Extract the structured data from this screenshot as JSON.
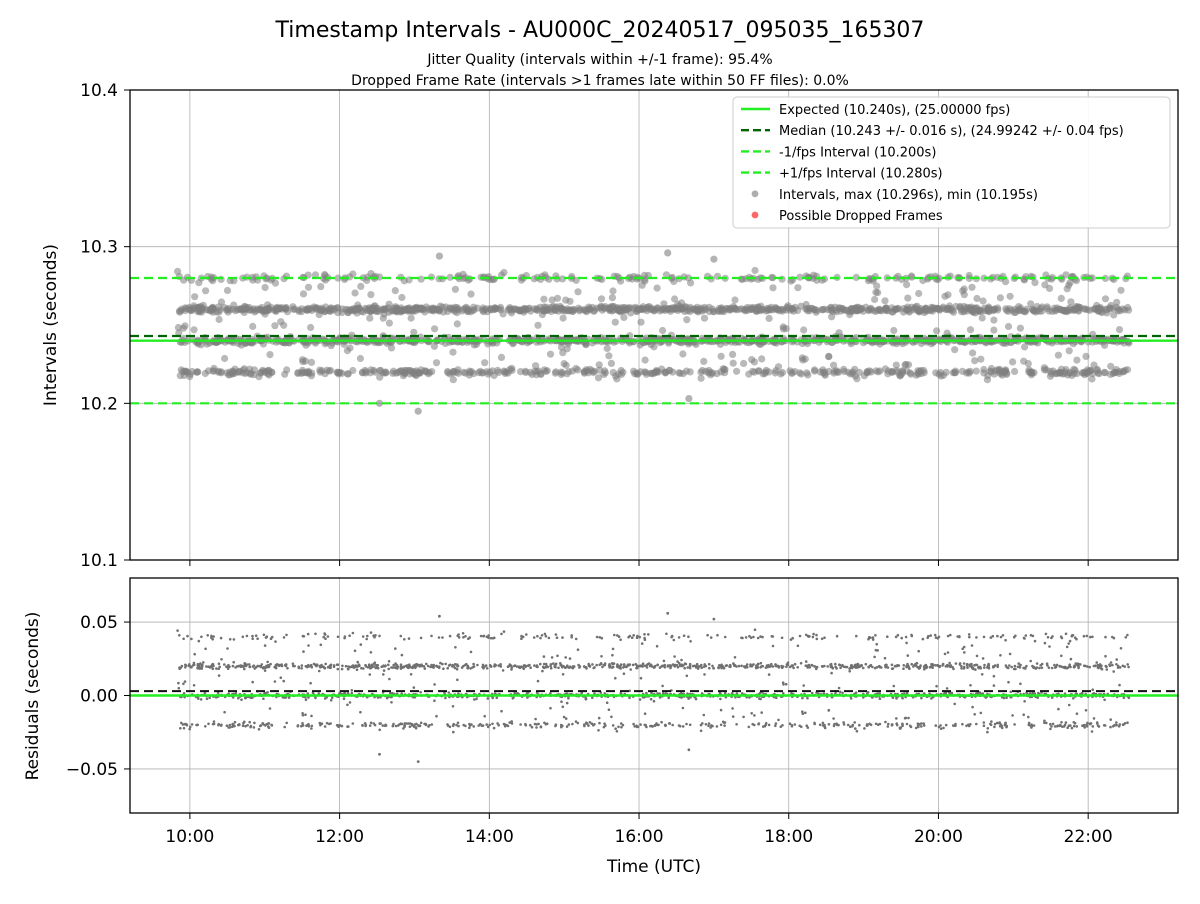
{
  "title": "Timestamp Intervals - AU000C_20240517_095035_165307",
  "subtitle_1": "Jitter Quality (intervals within +/-1 frame): 95.4%",
  "subtitle_2": "Dropped Frame Rate (intervals >1 frames late within 50 FF files): 0.0%",
  "colors": {
    "expected": "#22ee22",
    "median": "#006400",
    "points": "#808080",
    "dropped": "#ff4d4d",
    "grid": "#b0b0b0"
  },
  "chart_data": [
    {
      "type": "scatter",
      "ylabel": "Intervals (seconds)",
      "ylim": [
        10.1,
        10.4
      ],
      "yticks": [
        "10.1",
        "10.2",
        "10.3",
        "10.4"
      ],
      "yticks_values": [
        10.1,
        10.2,
        10.3,
        10.4
      ],
      "grid": true,
      "legend_position": "top-right",
      "legend": [
        {
          "label": "Expected (10.240s), (25.00000 fps)",
          "style": "solid",
          "color": "#22ee22"
        },
        {
          "label": "Median (10.243 +/- 0.016 s), (24.99242 +/- 0.04 fps)",
          "style": "dashed",
          "color": "#006400"
        },
        {
          "label": "-1/fps Interval (10.200s)",
          "style": "dashed",
          "color": "#22ee22"
        },
        {
          "label": "+1/fps Interval (10.280s)",
          "style": "dashed",
          "color": "#22ee22"
        },
        {
          "label": "Intervals, max (10.296s), min (10.195s)",
          "style": "marker",
          "color": "#a0a0a0"
        },
        {
          "label": "Possible Dropped Frames",
          "style": "marker",
          "color": "#ff4d4d"
        }
      ],
      "reference_lines": {
        "expected": 10.24,
        "median": 10.243,
        "minus_one_frame": 10.2,
        "plus_one_frame": 10.28
      },
      "series": [
        {
          "name": "Intervals, max (10.296s), min (10.195s)",
          "x_range": [
            "09:50",
            "22:33"
          ],
          "clusters": [
            10.22,
            10.24,
            10.26,
            10.28
          ],
          "max": 10.296,
          "min": 10.195,
          "notable_points": [
            {
              "x": "13:03",
              "y": 10.195
            },
            {
              "x": "12:32",
              "y": 10.2
            },
            {
              "x": "16:40",
              "y": 10.203
            },
            {
              "x": "16:23",
              "y": 10.296
            },
            {
              "x": "13:20",
              "y": 10.294
            },
            {
              "x": "17:00",
              "y": 10.292
            }
          ]
        }
      ]
    },
    {
      "type": "scatter",
      "xlabel": "Time (UTC)",
      "ylabel": "Residuals (seconds)",
      "ylim": [
        -0.08,
        0.08
      ],
      "yticks": [
        "−0.05",
        "0.00",
        "0.05"
      ],
      "yticks_values": [
        -0.05,
        0.0,
        0.05
      ],
      "xticks": [
        "10:00",
        "12:00",
        "14:00",
        "16:00",
        "18:00",
        "20:00",
        "22:00"
      ],
      "xlim": [
        "09:12",
        "23:12"
      ],
      "grid": true,
      "reference_lines": {
        "zero": 0.0,
        "median_offset": 0.003
      },
      "series": [
        {
          "name": "Residuals",
          "x_range": [
            "09:50",
            "22:33"
          ],
          "clusters": [
            -0.02,
            0.0,
            0.02,
            0.04
          ],
          "max": 0.056,
          "min": -0.045
        }
      ]
    }
  ]
}
